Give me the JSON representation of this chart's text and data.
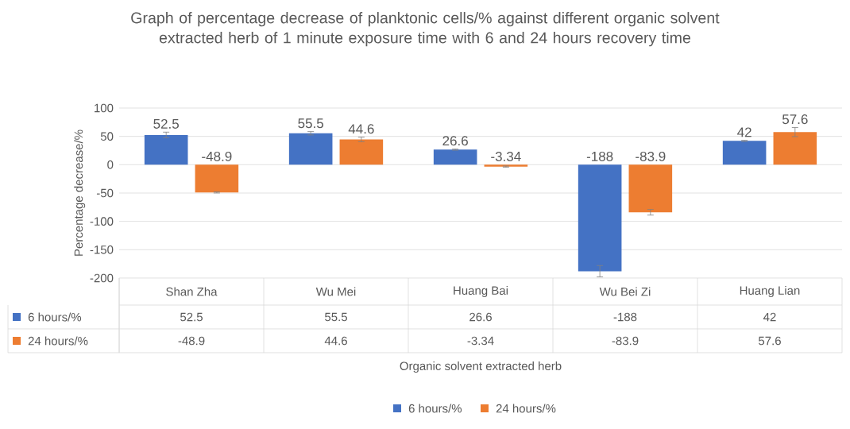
{
  "chart_data": {
    "type": "bar",
    "title": "Graph of percentage decrease of planktonic cells/% against different organic solvent extracted herb of 1 minute exposure time with 6 and 24 hours recovery time",
    "annotations": [
      "Organic solvent extracted herb"
    ],
    "ylabel": "Percentage decrease/%",
    "categories": [
      "Shan Zha",
      "Wu Mei",
      "Huang Bai",
      "Wu Bei Zi",
      "Huang Lian"
    ],
    "series": [
      {
        "name": "6 hours/%",
        "color": "#4472c4",
        "values": [
          52.5,
          55.5,
          26.6,
          -188,
          42
        ],
        "value_labels": [
          "52.5",
          "55.5",
          "26.6",
          "-188",
          "42"
        ],
        "errors": [
          5,
          3,
          1,
          10,
          1
        ]
      },
      {
        "name": "24 hours/%",
        "color": "#ed7d31",
        "values": [
          -48.9,
          44.6,
          -3.34,
          -83.9,
          57.6
        ],
        "value_labels": [
          "-48.9",
          "44.6",
          "-3.34",
          "-83.9",
          "57.6"
        ],
        "errors": [
          1,
          4,
          1,
          5,
          8
        ]
      }
    ],
    "ylim": [
      -200,
      100
    ],
    "yticks": [
      -200,
      -150,
      -100,
      -50,
      0,
      50,
      100
    ],
    "grid": "y",
    "legend": "bottom"
  }
}
